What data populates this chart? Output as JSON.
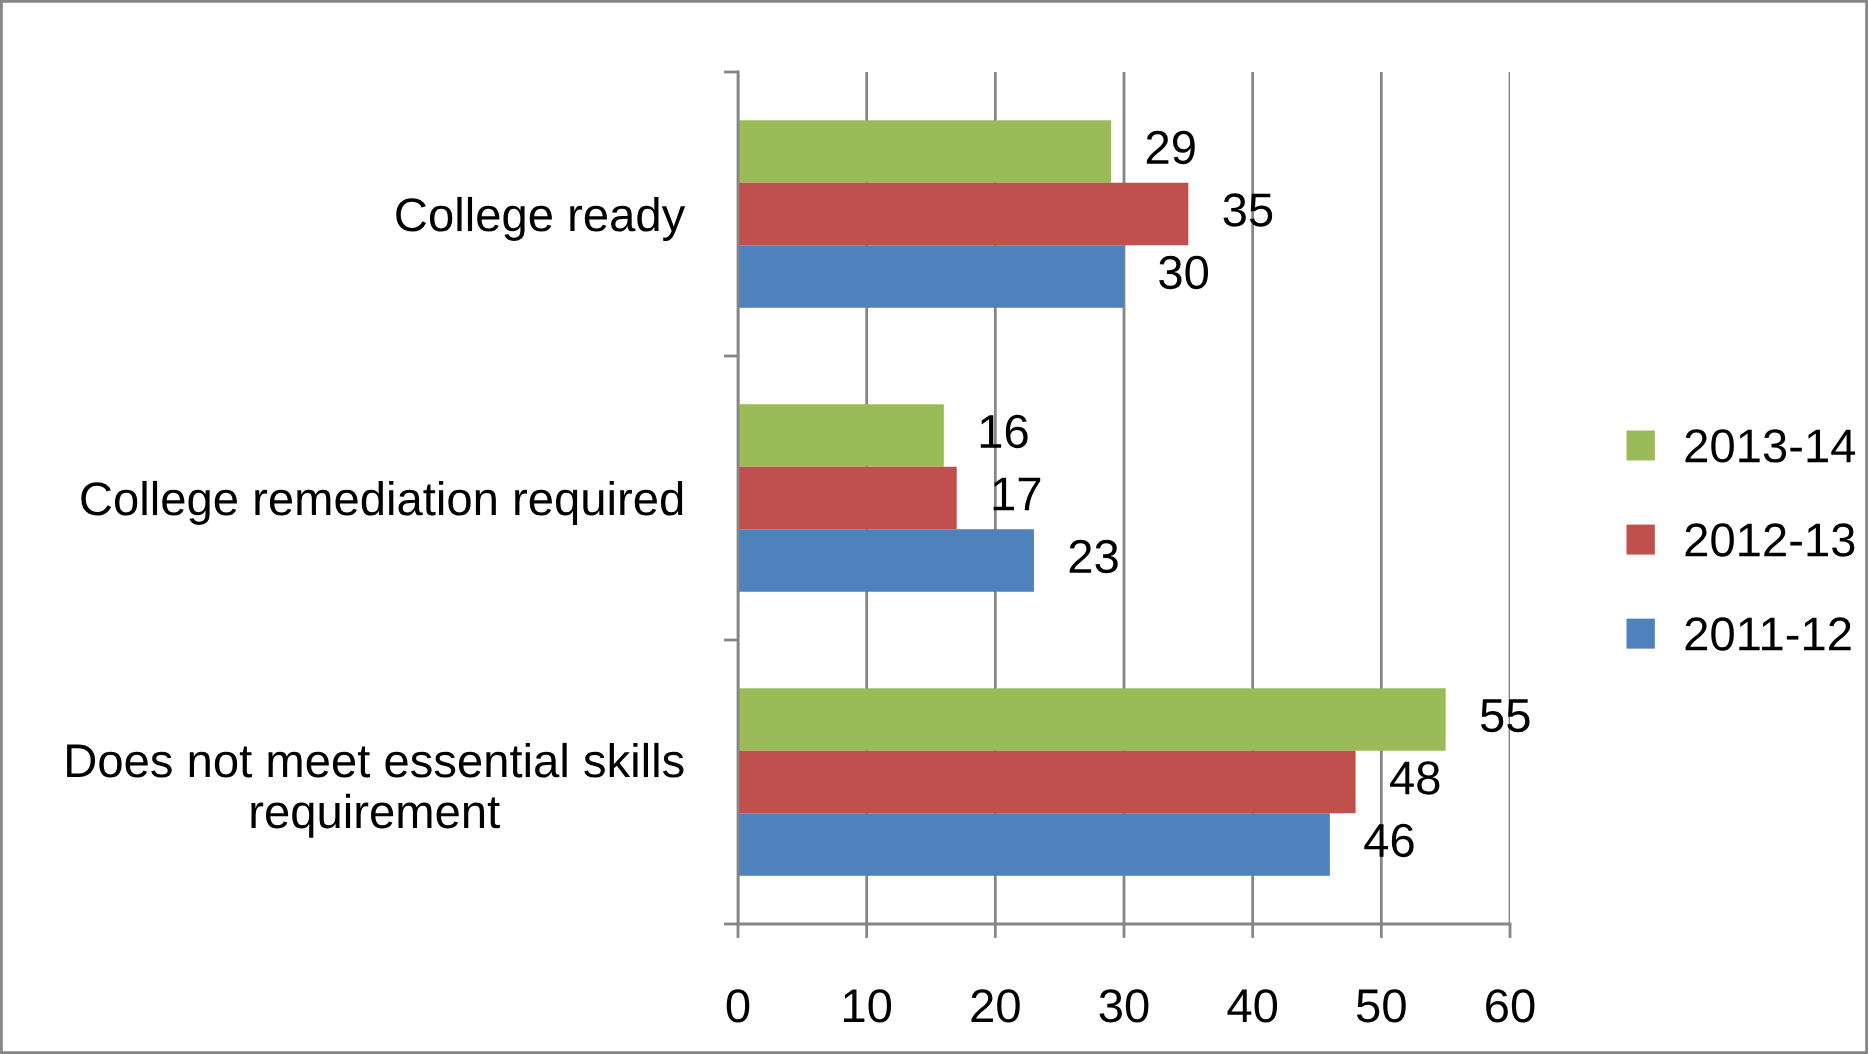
{
  "chart_data": {
    "type": "bar",
    "orientation": "horizontal",
    "categories": [
      "College ready",
      "College remediation required",
      "Does not meet essential skills\nrequirement"
    ],
    "series": [
      {
        "name": "2013-14",
        "color": "#9bbb59",
        "values": [
          29,
          16,
          55
        ]
      },
      {
        "name": "2012-13",
        "color": "#c0504d",
        "values": [
          35,
          17,
          48
        ]
      },
      {
        "name": "2011-12",
        "color": "#4f81bd",
        "values": [
          30,
          23,
          46
        ]
      }
    ],
    "xlim": [
      0,
      60
    ],
    "xticks": [
      0,
      10,
      20,
      30,
      40,
      50,
      60
    ],
    "grid": "x",
    "legend": "right",
    "data_labels": true
  }
}
